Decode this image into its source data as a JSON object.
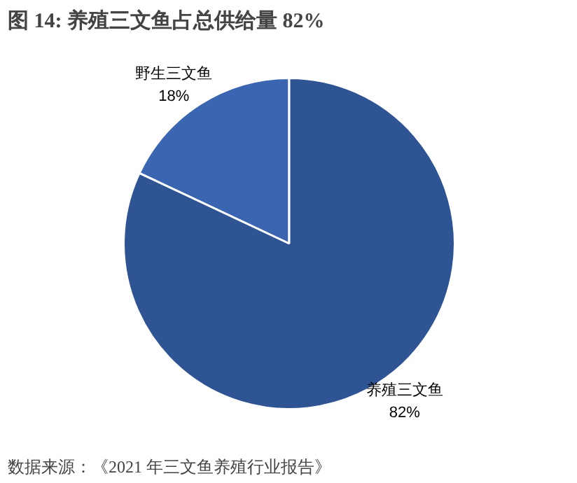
{
  "chart_data": {
    "type": "pie",
    "title": "图 14:  养殖三文鱼占总供给量 82%",
    "categories": [
      "野生三文鱼",
      "养殖三文鱼"
    ],
    "values": [
      18,
      82
    ],
    "colors": [
      "#3a65b0",
      "#2f5494"
    ],
    "value_labels": [
      "18%",
      "82%"
    ],
    "annotations": [
      "数据来源：《2021 年三文鱼养殖行业报告》"
    ]
  }
}
